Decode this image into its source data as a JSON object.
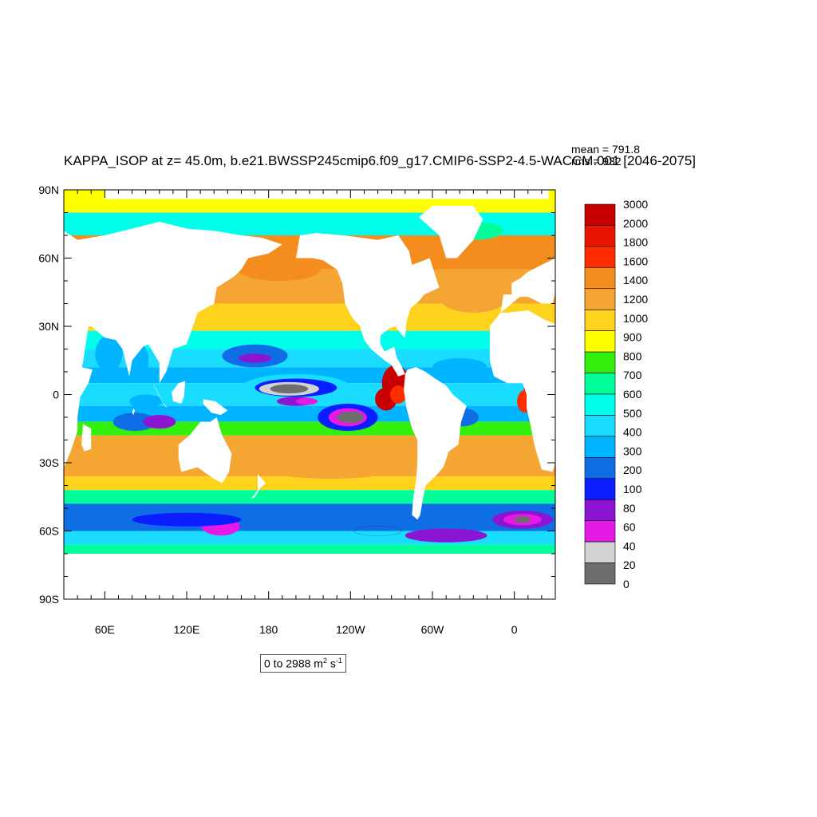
{
  "title": "KAPPA_ISOP at z=  45.0m, b.e21.BWSSP245cmip6.f09_g17.CMIP6-SSP2-4.5-WACCM.001 [2046-2075]",
  "stats": {
    "mean": "mean = 791.8",
    "rms": "rms = 932"
  },
  "units": {
    "prefix": "0 to 2988 m",
    "exp1": "2",
    "mid": " s",
    "exp2": "-1"
  },
  "colors": {
    "land": "#ffffff",
    "ocean_levels": [
      "#6e6e6e",
      "#d2d2d2",
      "#e619e6",
      "#8c14d2",
      "#0a1eff",
      "#0f6ee6",
      "#00b4ff",
      "#19dcff",
      "#00ffeb",
      "#00ff9b",
      "#32f00a",
      "#ffff00",
      "#ffd21e",
      "#f5a532",
      "#f58c1e",
      "#ff2d00",
      "#e61400",
      "#c80000"
    ]
  },
  "chart_data": {
    "type": "heatmap",
    "projection": "cylindrical equidistant",
    "lon_range": [
      30,
      390
    ],
    "lat_range": [
      -90,
      90
    ],
    "y_ticks": [
      "90N",
      "60N",
      "30N",
      "0",
      "30S",
      "60S",
      "90S"
    ],
    "x_ticks": [
      "60E",
      "120E",
      "180",
      "120W",
      "60W",
      "0"
    ],
    "colorbar": {
      "labels": [
        "3000",
        "2000",
        "1800",
        "1600",
        "1400",
        "1200",
        "1000",
        "900",
        "800",
        "700",
        "600",
        "500",
        "400",
        "300",
        "200",
        "100",
        "80",
        "60",
        "40",
        "20",
        "0"
      ],
      "colors": [
        "#c80000",
        "#e61400",
        "#ff2d00",
        "#f58c1e",
        "#f5a532",
        "#ffd21e",
        "#ffff00",
        "#32f00a",
        "#00ff9b",
        "#00ffeb",
        "#19dcff",
        "#00b4ff",
        "#0f6ee6",
        "#0a1eff",
        "#8c14d2",
        "#e619e6",
        "#d2d2d2",
        "#6e6e6e"
      ]
    },
    "stat_mean": 791.8,
    "stat_rms": 932,
    "max_value": 2988
  }
}
